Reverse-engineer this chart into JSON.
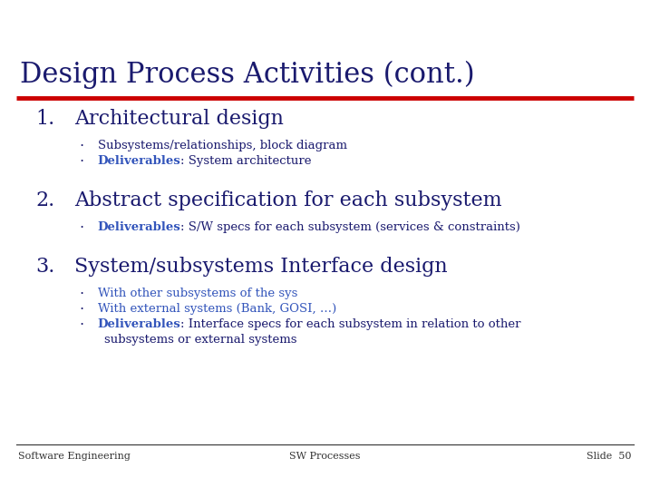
{
  "title": "Design Process Activities (cont.)",
  "title_color": "#1a1a6e",
  "title_fontsize": 22,
  "line_color": "#cc0000",
  "bg_color": "#ffffff",
  "footer_left": "Software Engineering",
  "footer_center": "SW Processes",
  "footer_right": "Slide  50",
  "footer_color": "#333333",
  "footer_fontsize": 8,
  "dark_blue": "#1a1a6e",
  "link_blue": "#3355bb",
  "heading_fontsize": 16,
  "bullet_fontsize": 9.5,
  "sections": [
    {
      "number": "1.",
      "heading": "Architectural design",
      "bullets": [
        {
          "parts": [
            {
              "text": "Subsystems/relationships, block diagram",
              "color": "#1a1a6e",
              "bold": false
            }
          ]
        },
        {
          "parts": [
            {
              "text": "Deliverables",
              "color": "#3355bb",
              "bold": true
            },
            {
              "text": ": System architecture",
              "color": "#1a1a6e",
              "bold": false
            }
          ]
        }
      ]
    },
    {
      "number": "2.",
      "heading": "Abstract specification for each subsystem",
      "bullets": [
        {
          "parts": [
            {
              "text": "Deliverables",
              "color": "#3355bb",
              "bold": true
            },
            {
              "text": ": S/W specs for each subsystem (services & constraints)",
              "color": "#1a1a6e",
              "bold": false
            }
          ]
        }
      ]
    },
    {
      "number": "3.",
      "heading": "System/subsystems Interface design",
      "bullets": [
        {
          "parts": [
            {
              "text": "With other subsystems of the sys",
              "color": "#3355bb",
              "bold": false
            }
          ]
        },
        {
          "parts": [
            {
              "text": "With external systems (Bank, GOSI, …)",
              "color": "#3355bb",
              "bold": false
            }
          ]
        },
        {
          "parts": [
            {
              "text": "Deliverables",
              "color": "#3355bb",
              "bold": true
            },
            {
              "text": ": Interface specs for each subsystem in relation to other",
              "color": "#1a1a6e",
              "bold": false
            }
          ],
          "continuation": "subsystems or external systems"
        }
      ]
    }
  ]
}
